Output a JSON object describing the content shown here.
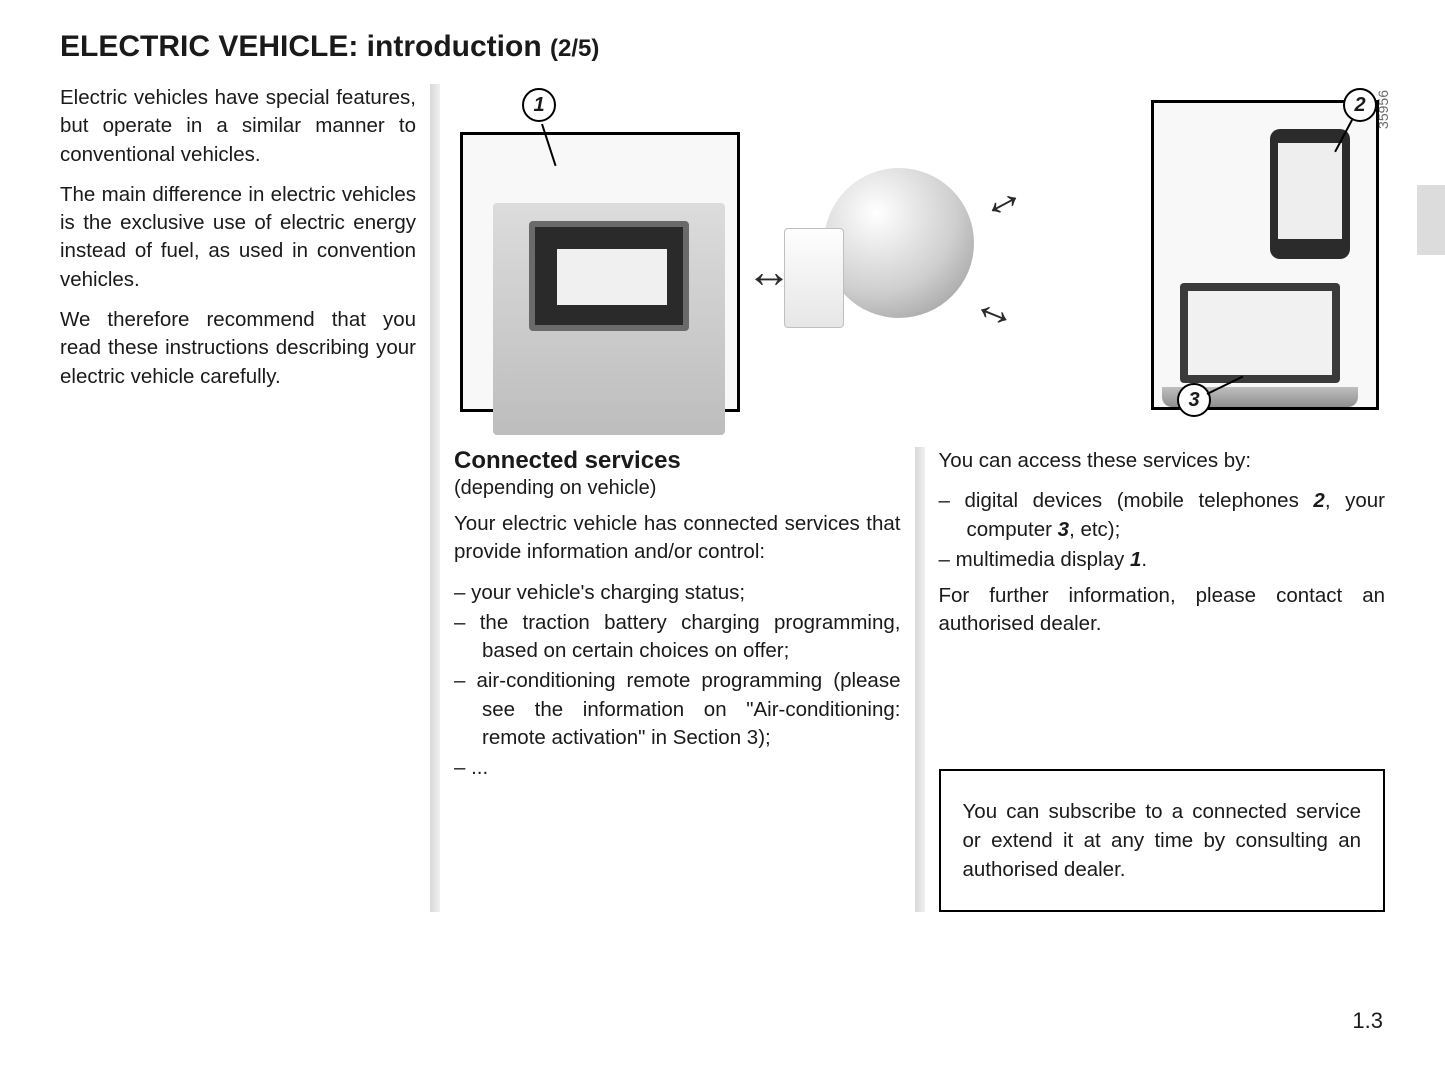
{
  "title_main": "ELECTRIC VEHICLE: introduction",
  "title_sub": "(2/5)",
  "left_paras": [
    "Electric vehicles have special features, but operate in a similar manner to conventional vehicles.",
    "The main difference in electric vehicles is the exclusive use of electric energy instead of fuel, as used in convention vehicles.",
    "We therefore recommend that you read these instructions describing your electric vehicle carefully."
  ],
  "figure": {
    "image_id": "35956",
    "callouts": {
      "c1": "1",
      "c2": "2",
      "c3": "3"
    }
  },
  "section_heading": "Connected services",
  "section_sub": "(depending on vehicle)",
  "mid_intro": "Your electric vehicle has connected services that provide information and/or control:",
  "mid_bullets": [
    "your vehicle's charging status;",
    "the traction battery charging programming, based on certain choices on offer;",
    "air-conditioning remote programming (please see the information on \"Air-conditioning: remote activation\" in Section 3);",
    "..."
  ],
  "right_intro": "You can access these services by:",
  "right_bullets_html": [
    "digital devices (mobile telephones <span class=\"bi\">2</span>, your computer <span class=\"bi\">3</span>, etc);",
    "multimedia display <span class=\"bi\">1</span>."
  ],
  "right_para": "For further information, please contact an authorised dealer.",
  "info_box": "You can subscribe to a connected service or extend it at any time by consulting an authorised dealer.",
  "page_number": "1.3"
}
